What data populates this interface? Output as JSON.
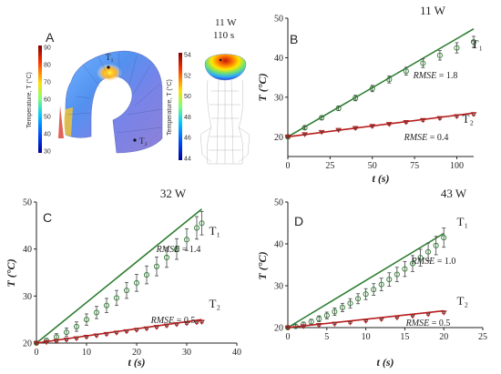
{
  "panel_a": {
    "letter": "A",
    "colorbar_left": {
      "label": "Temperature, T (°C)",
      "ticks": [
        "90",
        "80",
        "70",
        "60",
        "50",
        "40",
        "30"
      ]
    },
    "colorbar_right": {
      "label": "Temperature, T (°C)",
      "ticks": [
        "54",
        "52",
        "50",
        "48",
        "46",
        "44"
      ]
    },
    "point_1": "T₁",
    "point_2": "T₂",
    "power": "11 W",
    "time": "110 s"
  },
  "chart_data": [
    {
      "panel": "B",
      "type": "scatter",
      "title": "11 W",
      "xlabel": "t (s)",
      "ylabel": "T (°C)",
      "xlim": [
        0,
        110
      ],
      "ylim": [
        15,
        50
      ],
      "xticks": [
        "0",
        "25",
        "50",
        "75",
        "100"
      ],
      "yticks": [
        "20",
        "30",
        "40",
        "50"
      ],
      "series": [
        {
          "name": "T₁",
          "rmse": "RMSE = 1.8",
          "x": [
            0,
            10,
            20,
            30,
            40,
            50,
            60,
            70,
            80,
            90,
            100,
            110
          ],
          "y": [
            20,
            22.3,
            24.8,
            27.2,
            29.8,
            32.2,
            34.5,
            36.6,
            38.6,
            40.6,
            42.5,
            44
          ],
          "err": [
            0.3,
            0.4,
            0.5,
            0.6,
            0.7,
            0.8,
            0.9,
            1.0,
            1.1,
            1.2,
            1.3,
            1.4
          ],
          "model": [
            [
              0,
              20
            ],
            [
              110,
              47.3
            ]
          ],
          "color": "#2e7d32"
        },
        {
          "name": "T₂",
          "rmse": "RMSE = 0.4",
          "x": [
            0,
            10,
            20,
            30,
            40,
            50,
            60,
            70,
            80,
            90,
            100,
            110
          ],
          "y": [
            20,
            20.6,
            21.2,
            21.7,
            22.2,
            22.7,
            23.2,
            23.7,
            24.2,
            24.7,
            25.2,
            25.7
          ],
          "err": [
            0.2,
            0.2,
            0.2,
            0.2,
            0.3,
            0.3,
            0.3,
            0.3,
            0.3,
            0.3,
            0.3,
            0.3
          ],
          "model": [
            [
              0,
              20
            ],
            [
              110,
              26
            ]
          ],
          "color": "#b71c1c"
        }
      ]
    },
    {
      "panel": "C",
      "type": "scatter",
      "title": "32 W",
      "xlabel": "t (s)",
      "ylabel": "T (°C)",
      "xlim": [
        0,
        40
      ],
      "ylim": [
        20,
        50
      ],
      "xticks": [
        "0",
        "10",
        "20",
        "30",
        "40"
      ],
      "yticks": [
        "20",
        "30",
        "40",
        "50"
      ],
      "series": [
        {
          "name": "T₁",
          "rmse": "RMSE = 1.4",
          "x": [
            0,
            2,
            4,
            6,
            8,
            10,
            12,
            14,
            16,
            18,
            20,
            22,
            24,
            26,
            28,
            30,
            32,
            33
          ],
          "y": [
            20,
            20.5,
            21.3,
            22.3,
            23.5,
            25,
            26.5,
            28,
            29.6,
            31.2,
            32.8,
            34.5,
            36.3,
            38.2,
            40,
            42,
            44.5,
            45.5
          ],
          "err": [
            0.3,
            0.5,
            0.7,
            0.9,
            1.0,
            1.2,
            1.3,
            1.5,
            1.6,
            1.7,
            1.8,
            1.9,
            2.0,
            2.1,
            2.2,
            2.3,
            2.4,
            2.5
          ],
          "model": [
            [
              0,
              20
            ],
            [
              33,
              48.5
            ]
          ],
          "color": "#2e7d32"
        },
        {
          "name": "T₂",
          "rmse": "RMSE = 0.5",
          "x": [
            0,
            2,
            4,
            6,
            8,
            10,
            12,
            14,
            16,
            18,
            20,
            22,
            24,
            26,
            28,
            30,
            32,
            33
          ],
          "y": [
            20,
            20.2,
            20.4,
            20.7,
            21,
            21.3,
            21.6,
            21.9,
            22.2,
            22.5,
            22.8,
            23.1,
            23.4,
            23.7,
            24,
            24.2,
            24.4,
            24.5
          ],
          "err": [
            0.2,
            0.2,
            0.2,
            0.2,
            0.2,
            0.2,
            0.2,
            0.2,
            0.2,
            0.2,
            0.2,
            0.2,
            0.2,
            0.2,
            0.2,
            0.2,
            0.2,
            0.2
          ],
          "model": [
            [
              0,
              20
            ],
            [
              33,
              25
            ]
          ],
          "color": "#b71c1c"
        }
      ]
    },
    {
      "panel": "D",
      "type": "scatter",
      "title": "43 W",
      "xlabel": "t (s)",
      "ylabel": "T (°C)",
      "xlim": [
        0,
        25
      ],
      "ylim": [
        20,
        50
      ],
      "xticks": [
        "0",
        "5",
        "10",
        "15",
        "20",
        "25"
      ],
      "yticks": [
        "20",
        "30",
        "40",
        "50"
      ],
      "series": [
        {
          "name": "T₁",
          "rmse": "RMSE = 1.0",
          "x": [
            0,
            1,
            2,
            3,
            4,
            5,
            6,
            7,
            8,
            9,
            10,
            11,
            12,
            13,
            14,
            15,
            16,
            17,
            18,
            19,
            20
          ],
          "y": [
            20,
            20.3,
            20.8,
            21.4,
            22.1,
            22.9,
            23.8,
            24.8,
            25.8,
            26.9,
            28,
            29.1,
            30.3,
            31.5,
            32.7,
            34,
            35.3,
            36.7,
            38.1,
            39.6,
            41.5
          ],
          "err": [
            0.3,
            0.4,
            0.5,
            0.6,
            0.7,
            0.8,
            0.9,
            1.0,
            1.1,
            1.2,
            1.3,
            1.4,
            1.5,
            1.6,
            1.7,
            1.8,
            1.9,
            2.0,
            2.1,
            2.2,
            2.3
          ],
          "model": [
            [
              0,
              20
            ],
            [
              20,
              42.5
            ]
          ],
          "color": "#2e7d32"
        },
        {
          "name": "T₂",
          "rmse": "RMSE = 0.5",
          "x": [
            0,
            2,
            4,
            6,
            8,
            10,
            12,
            14,
            16,
            18,
            20
          ],
          "y": [
            20,
            20.3,
            20.6,
            20.9,
            21.2,
            21.6,
            22,
            22.4,
            22.8,
            23.2,
            23.6
          ],
          "err": [
            0.2,
            0.2,
            0.2,
            0.2,
            0.2,
            0.2,
            0.2,
            0.2,
            0.2,
            0.2,
            0.2
          ],
          "model": [
            [
              0,
              20
            ],
            [
              20,
              24
            ]
          ],
          "color": "#b71c1c"
        }
      ]
    }
  ]
}
